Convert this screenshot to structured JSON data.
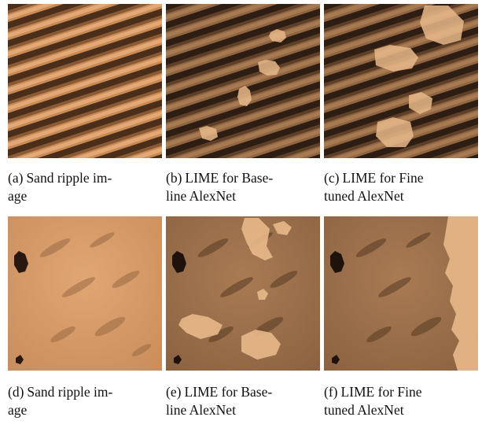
{
  "figure": {
    "panels": [
      {
        "tag": "(a)",
        "text": "Sand ripple image",
        "caption_line1": "Sand ripple im-",
        "caption_line2": "age",
        "texture": "striped",
        "overlay": "none"
      },
      {
        "tag": "(b)",
        "text": "LIME for Baseline AlexNet",
        "caption_line1": "LIME for Base-",
        "caption_line2": "line AlexNet",
        "texture": "striped",
        "overlay": "lime-baseline"
      },
      {
        "tag": "(c)",
        "text": "LIME for Fine tuned AlexNet",
        "caption_line1": "LIME for Fine",
        "caption_line2": "tuned AlexNet",
        "texture": "striped",
        "overlay": "lime-finetuned"
      },
      {
        "tag": "(d)",
        "text": "Sand ripple image",
        "caption_line1": "Sand ripple im-",
        "caption_line2": "age",
        "texture": "dunes",
        "overlay": "none"
      },
      {
        "tag": "(e)",
        "text": "LIME for Baseline AlexNet",
        "caption_line1": "LIME for Base-",
        "caption_line2": "line AlexNet",
        "texture": "dunes",
        "overlay": "lime-baseline"
      },
      {
        "tag": "(f)",
        "text": "LIME for Fine tuned AlexNet",
        "caption_line1": "LIME for Fine",
        "caption_line2": "tuned AlexNet",
        "texture": "dunes",
        "overlay": "lime-finetuned"
      }
    ],
    "colors": {
      "sand_light": "#d99a62",
      "sand_dark": "#5a3a22",
      "highlight": "#e8b98a"
    }
  }
}
